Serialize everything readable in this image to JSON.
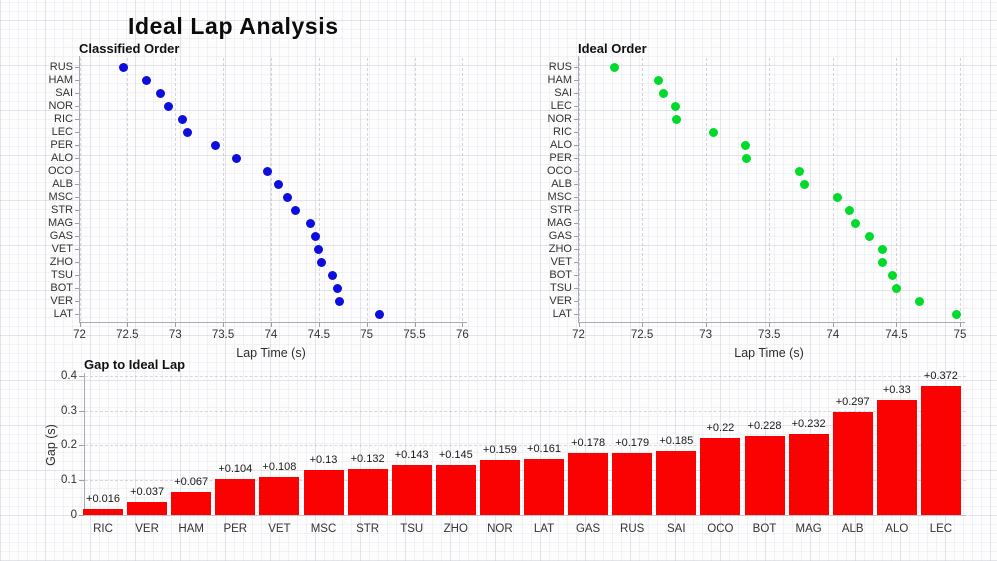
{
  "page_title": "Ideal Lap Analysis",
  "colors": {
    "classified_dot": "#0d0ddd",
    "ideal_dot": "#00db2b",
    "bar": "#fa0202",
    "text": "#2e2e2e",
    "axis": "#a8adb5"
  },
  "chart_data": [
    {
      "id": "classified",
      "type": "scatter",
      "title": "Classified Order",
      "xlabel": "Lap Time (s)",
      "xlim": [
        72,
        76
      ],
      "xticks": [
        72,
        72.5,
        73,
        73.5,
        74,
        74.5,
        75,
        75.5,
        76
      ],
      "xtick_labels": [
        "72",
        "72.5",
        "73",
        "73.5",
        "74",
        "74.5",
        "75",
        "75.5",
        "76"
      ],
      "categories": [
        "RUS",
        "HAM",
        "SAI",
        "NOR",
        "RIC",
        "LEC",
        "PER",
        "ALO",
        "OCO",
        "ALB",
        "MSC",
        "STR",
        "MAG",
        "GAS",
        "VET",
        "ZHO",
        "TSU",
        "BOT",
        "VER",
        "LAT"
      ],
      "values": [
        72.46,
        72.7,
        72.85,
        72.93,
        73.08,
        73.13,
        73.42,
        73.64,
        73.96,
        74.08,
        74.17,
        74.26,
        74.41,
        74.47,
        74.5,
        74.53,
        74.64,
        74.7,
        74.72,
        75.13
      ],
      "dot_color": "#0d0ddd"
    },
    {
      "id": "ideal",
      "type": "scatter",
      "title": "Ideal Order",
      "xlabel": "Lap Time (s)",
      "xlim": [
        72,
        75
      ],
      "xticks": [
        72,
        72.5,
        73,
        73.5,
        74,
        74.5,
        75
      ],
      "xtick_labels": [
        "72",
        "72.5",
        "73",
        "73.5",
        "74",
        "74.5",
        "75"
      ],
      "categories": [
        "RUS",
        "HAM",
        "SAI",
        "LEC",
        "NOR",
        "RIC",
        "ALO",
        "PER",
        "OCO",
        "ALB",
        "MSC",
        "STR",
        "MAG",
        "GAS",
        "ZHO",
        "VET",
        "BOT",
        "TSU",
        "VER",
        "LAT"
      ],
      "values": [
        72.28,
        72.63,
        72.67,
        72.76,
        72.77,
        73.06,
        73.31,
        73.32,
        73.74,
        73.78,
        74.04,
        74.13,
        74.18,
        74.29,
        74.39,
        74.39,
        74.47,
        74.5,
        74.68,
        74.97
      ],
      "dot_color": "#00db2b"
    },
    {
      "id": "gap",
      "type": "bar",
      "title": "Gap to Ideal Lap",
      "ylabel": "Gap (s)",
      "ylim": [
        0,
        0.4
      ],
      "yticks": [
        0,
        0.1,
        0.2,
        0.3,
        0.4
      ],
      "ytick_labels": [
        "0",
        "0.1",
        "0.2",
        "0.3",
        "0.4"
      ],
      "categories": [
        "RIC",
        "VER",
        "HAM",
        "PER",
        "VET",
        "MSC",
        "STR",
        "TSU",
        "ZHO",
        "NOR",
        "LAT",
        "GAS",
        "RUS",
        "SAI",
        "OCO",
        "BOT",
        "MAG",
        "ALB",
        "ALO",
        "LEC"
      ],
      "values": [
        0.016,
        0.037,
        0.067,
        0.104,
        0.108,
        0.13,
        0.132,
        0.143,
        0.145,
        0.159,
        0.161,
        0.178,
        0.179,
        0.185,
        0.22,
        0.228,
        0.232,
        0.297,
        0.33,
        0.372
      ],
      "bar_labels": [
        "+0.016",
        "+0.037",
        "+0.067",
        "+0.104",
        "+0.108",
        "+0.13",
        "+0.132",
        "+0.143",
        "+0.145",
        "+0.159",
        "+0.161",
        "+0.178",
        "+0.179",
        "+0.185",
        "+0.22",
        "+0.228",
        "+0.232",
        "+0.297",
        "+0.33",
        "+0.372"
      ],
      "bar_color": "#fa0202"
    }
  ]
}
